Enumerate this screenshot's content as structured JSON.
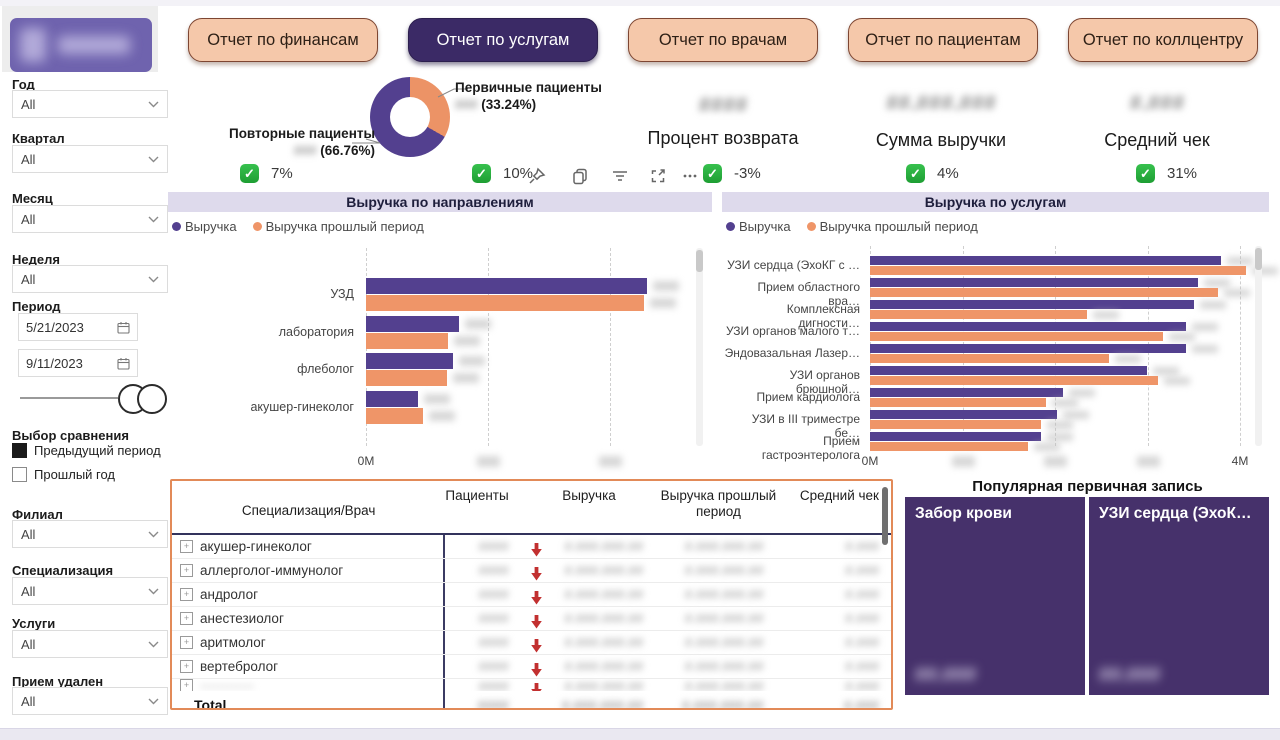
{
  "nav": {
    "buttons": [
      {
        "label": "Отчет по финансам",
        "active": false
      },
      {
        "label": "Отчет по услугам",
        "active": true
      },
      {
        "label": "Отчет по врачам",
        "active": false
      },
      {
        "label": "Отчет по пациентам",
        "active": false
      },
      {
        "label": "Отчет по коллцентру",
        "active": false
      }
    ]
  },
  "sidebar": {
    "selects": [
      {
        "label": "Год",
        "value": "All"
      },
      {
        "label": "Квартал",
        "value": "All"
      },
      {
        "label": "Месяц",
        "value": "All"
      },
      {
        "label": "Неделя",
        "value": "All"
      }
    ],
    "period": {
      "label": "Период",
      "from": "5/21/2023",
      "to": "9/11/2023"
    },
    "comparison": {
      "label": "Выбор сравнения",
      "options": [
        {
          "label": "Предыдущий период",
          "checked": true
        },
        {
          "label": "Прошлый год",
          "checked": false
        }
      ]
    },
    "selects2": [
      {
        "label": "Филиал",
        "value": "All"
      },
      {
        "label": "Специализация",
        "value": "All"
      },
      {
        "label": "Услуги",
        "value": "All"
      },
      {
        "label": "Прием удален",
        "value": "All"
      }
    ]
  },
  "overview": {
    "donut_deltas": [
      {
        "value": "7%"
      },
      {
        "value": "10%"
      }
    ],
    "kpis": [
      {
        "label": "Процент возврата",
        "delta": "-3%",
        "masked_value": "####"
      },
      {
        "label": "Сумма выручки",
        "delta": "4%",
        "masked_value": "##.###.###"
      },
      {
        "label": "Средний чек",
        "delta": "31%",
        "masked_value": "#.###"
      }
    ],
    "visual_header_icons": [
      "pin-icon",
      "copy-icon",
      "filter-icon",
      "focus-mode-icon",
      "more-options-icon"
    ]
  },
  "chart_data": [
    {
      "type": "pie",
      "subtype": "donut",
      "slices": [
        {
          "label": "Первичные пациенты",
          "pct": 33.24,
          "pct_label": "(33.24%)",
          "color": "#EC9366",
          "count_masked": "###"
        },
        {
          "label": "Повторные пациенты",
          "pct": 66.76,
          "pct_label": "(66.76%)",
          "color": "#53408F",
          "count_masked": "###"
        }
      ]
    },
    {
      "type": "bar",
      "orientation": "horizontal",
      "title": "Выручка по направлениям",
      "categories": [
        "УЗД",
        "лаборатория",
        "флеболог",
        "акушер-гинеколог"
      ],
      "series": [
        {
          "name": "Выручка",
          "color": "#53408F",
          "values": [
            23.0,
            7.6,
            7.1,
            4.3
          ]
        },
        {
          "name": "Выручка прошлый период",
          "color": "#EF9568",
          "values": [
            22.8,
            6.7,
            6.6,
            4.7
          ]
        }
      ],
      "units": "M",
      "xlim": [
        0,
        25.5
      ],
      "x_ticks": [
        {
          "value": 0,
          "label": "0M",
          "masked": false
        },
        {
          "value": 10,
          "label": "10M",
          "masked": true
        },
        {
          "value": 20,
          "label": "20M",
          "masked": true
        }
      ],
      "data_labels_masked": true,
      "grid": true,
      "legend_position": "top"
    },
    {
      "type": "bar",
      "orientation": "horizontal",
      "title": "Выручка по услугам",
      "categories": [
        "УЗИ сердца (ЭхоКГ с …",
        "Прием областного вра…",
        "Комплексная дигности…",
        "УЗИ органов малого т…",
        "Эндовазальная Лазер…",
        "УЗИ органов брюшной…",
        "Прием кардиолога",
        "УЗИ в III триместре бе…",
        "Прием гастроэнтеролога"
      ],
      "series": [
        {
          "name": "Выручка",
          "color": "#53408F",
          "values": [
            3.79,
            3.55,
            3.5,
            3.42,
            3.42,
            2.99,
            2.09,
            2.02,
            1.85
          ]
        },
        {
          "name": "Выручка прошлый период",
          "color": "#EF9568",
          "values": [
            4.06,
            3.76,
            2.35,
            3.17,
            2.58,
            3.11,
            1.9,
            1.85,
            1.71
          ]
        }
      ],
      "units": "M",
      "xlim": [
        0,
        4.3
      ],
      "x_ticks": [
        {
          "value": 0,
          "label": "0M",
          "masked": false
        },
        {
          "value": 1,
          "label": "1M",
          "masked": true
        },
        {
          "value": 2,
          "label": "2M",
          "masked": true
        },
        {
          "value": 3,
          "label": "3M",
          "masked": true
        },
        {
          "value": 4,
          "label": "4M",
          "masked": false
        }
      ],
      "data_labels_masked": true,
      "grid": true,
      "legend_position": "top"
    }
  ],
  "table": {
    "headers": [
      "Специализация/Врач",
      "Пациенты",
      "Выручка",
      "Выручка прошлый период",
      "Средний чек"
    ],
    "rows": [
      {
        "name": "акушер-гинеколог",
        "trend": "down"
      },
      {
        "name": "аллерголог-иммунолог",
        "trend": "down"
      },
      {
        "name": "андролог",
        "trend": "down"
      },
      {
        "name": "анестезиолог",
        "trend": "down"
      },
      {
        "name": "аритмолог",
        "trend": "down"
      },
      {
        "name": "вертебролог",
        "trend": "down"
      },
      {
        "name": "------------",
        "trend": "down",
        "partial": true,
        "name_masked": true
      }
    ],
    "total_label": "Total",
    "masked_cells": {
      "patients": "####",
      "revenue": "#.###.###.##",
      "revenue_prev": "#.###.###.##",
      "avg_check": "#.###"
    }
  },
  "treemap": {
    "title": "Популярная первичная запись",
    "tiles": [
      {
        "label": "Забор крови",
        "masked_value": "##.###"
      },
      {
        "label": "УЗИ сердца (ЭхоК…",
        "masked_value": "##.###"
      }
    ]
  },
  "colors": {
    "accent_purple": "#53408F",
    "accent_orange": "#EF9568",
    "nav_active_bg": "#3B2A66",
    "nav_bg": "#F5C8AA",
    "nav_border": "#7D4632",
    "panel_title_bg": "#DEDAEC",
    "treemap_tile": "#46316B",
    "table_border": "#E28A58",
    "positive_green": "#2EB840",
    "trend_red": "#C23030"
  }
}
